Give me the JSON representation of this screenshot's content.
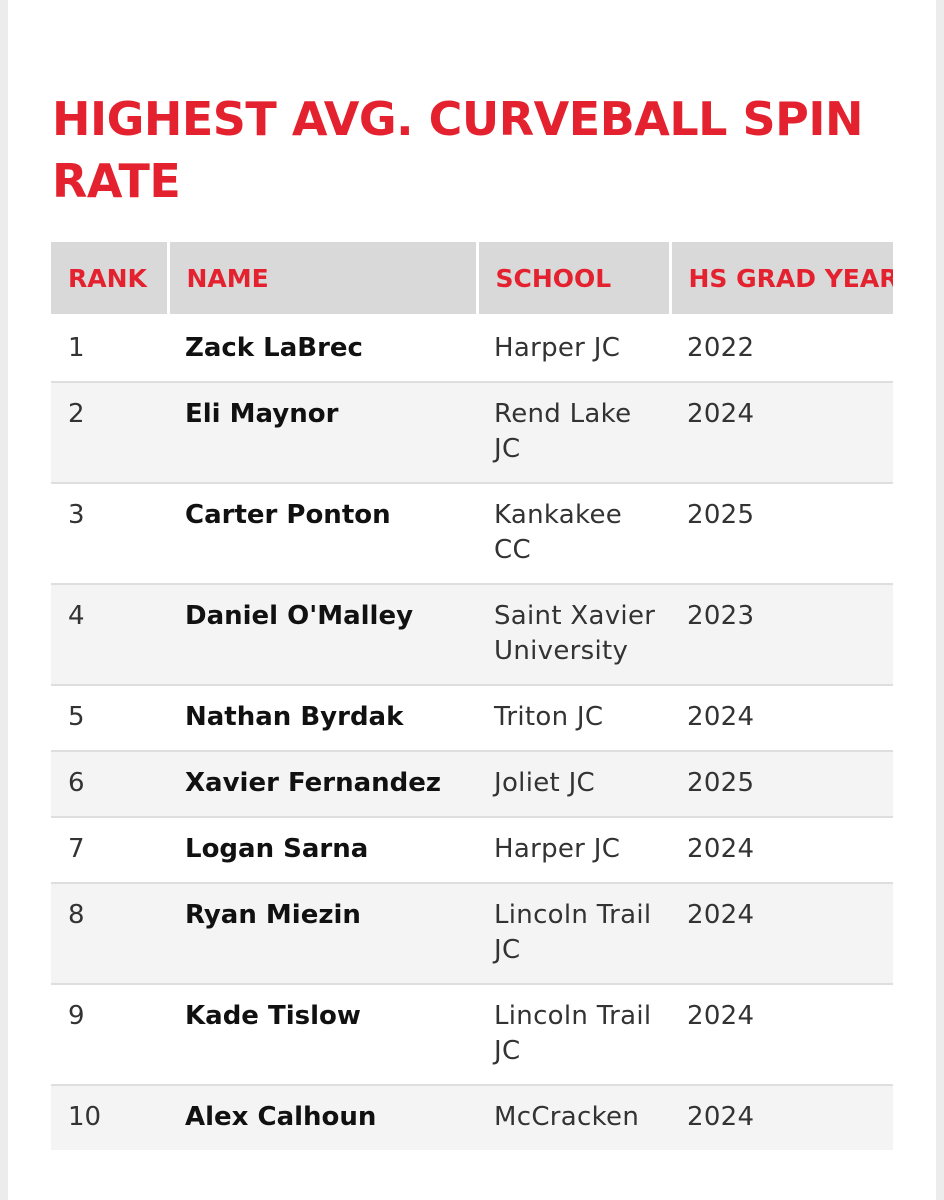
{
  "title": "HIGHEST AVG. CURVEBALL SPIN RATE",
  "columns": {
    "rank": "RANK",
    "name": "NAME",
    "school": "SCHOOL",
    "grad_year": "HS GRAD YEAR"
  },
  "rows": [
    {
      "rank": "1",
      "name": "Zack LaBrec",
      "school": "Harper JC",
      "grad_year": "2022"
    },
    {
      "rank": "2",
      "name": "Eli Maynor",
      "school": "Rend Lake JC",
      "grad_year": "2024"
    },
    {
      "rank": "3",
      "name": "Carter Ponton",
      "school": "Kankakee CC",
      "grad_year": "2025"
    },
    {
      "rank": "4",
      "name": "Daniel O'Malley",
      "school": "Saint Xavier University",
      "grad_year": "2023"
    },
    {
      "rank": "5",
      "name": "Nathan Byrdak",
      "school": "Triton JC",
      "grad_year": "2024"
    },
    {
      "rank": "6",
      "name": "Xavier Fernandez",
      "school": "Joliet JC",
      "grad_year": "2025"
    },
    {
      "rank": "7",
      "name": "Logan Sarna",
      "school": "Harper JC",
      "grad_year": "2024"
    },
    {
      "rank": "8",
      "name": "Ryan Miezin",
      "school": "Lincoln Trail JC",
      "grad_year": "2024"
    },
    {
      "rank": "9",
      "name": "Kade Tislow",
      "school": "Lincoln Trail JC",
      "grad_year": "2024"
    },
    {
      "rank": "10",
      "name": "Alex Calhoun",
      "school": "McCracken",
      "grad_year": "2024"
    }
  ],
  "colors": {
    "accent": "#e4222f",
    "header_bg": "#d9d9d9",
    "stripe_bg": "#f4f4f4"
  }
}
